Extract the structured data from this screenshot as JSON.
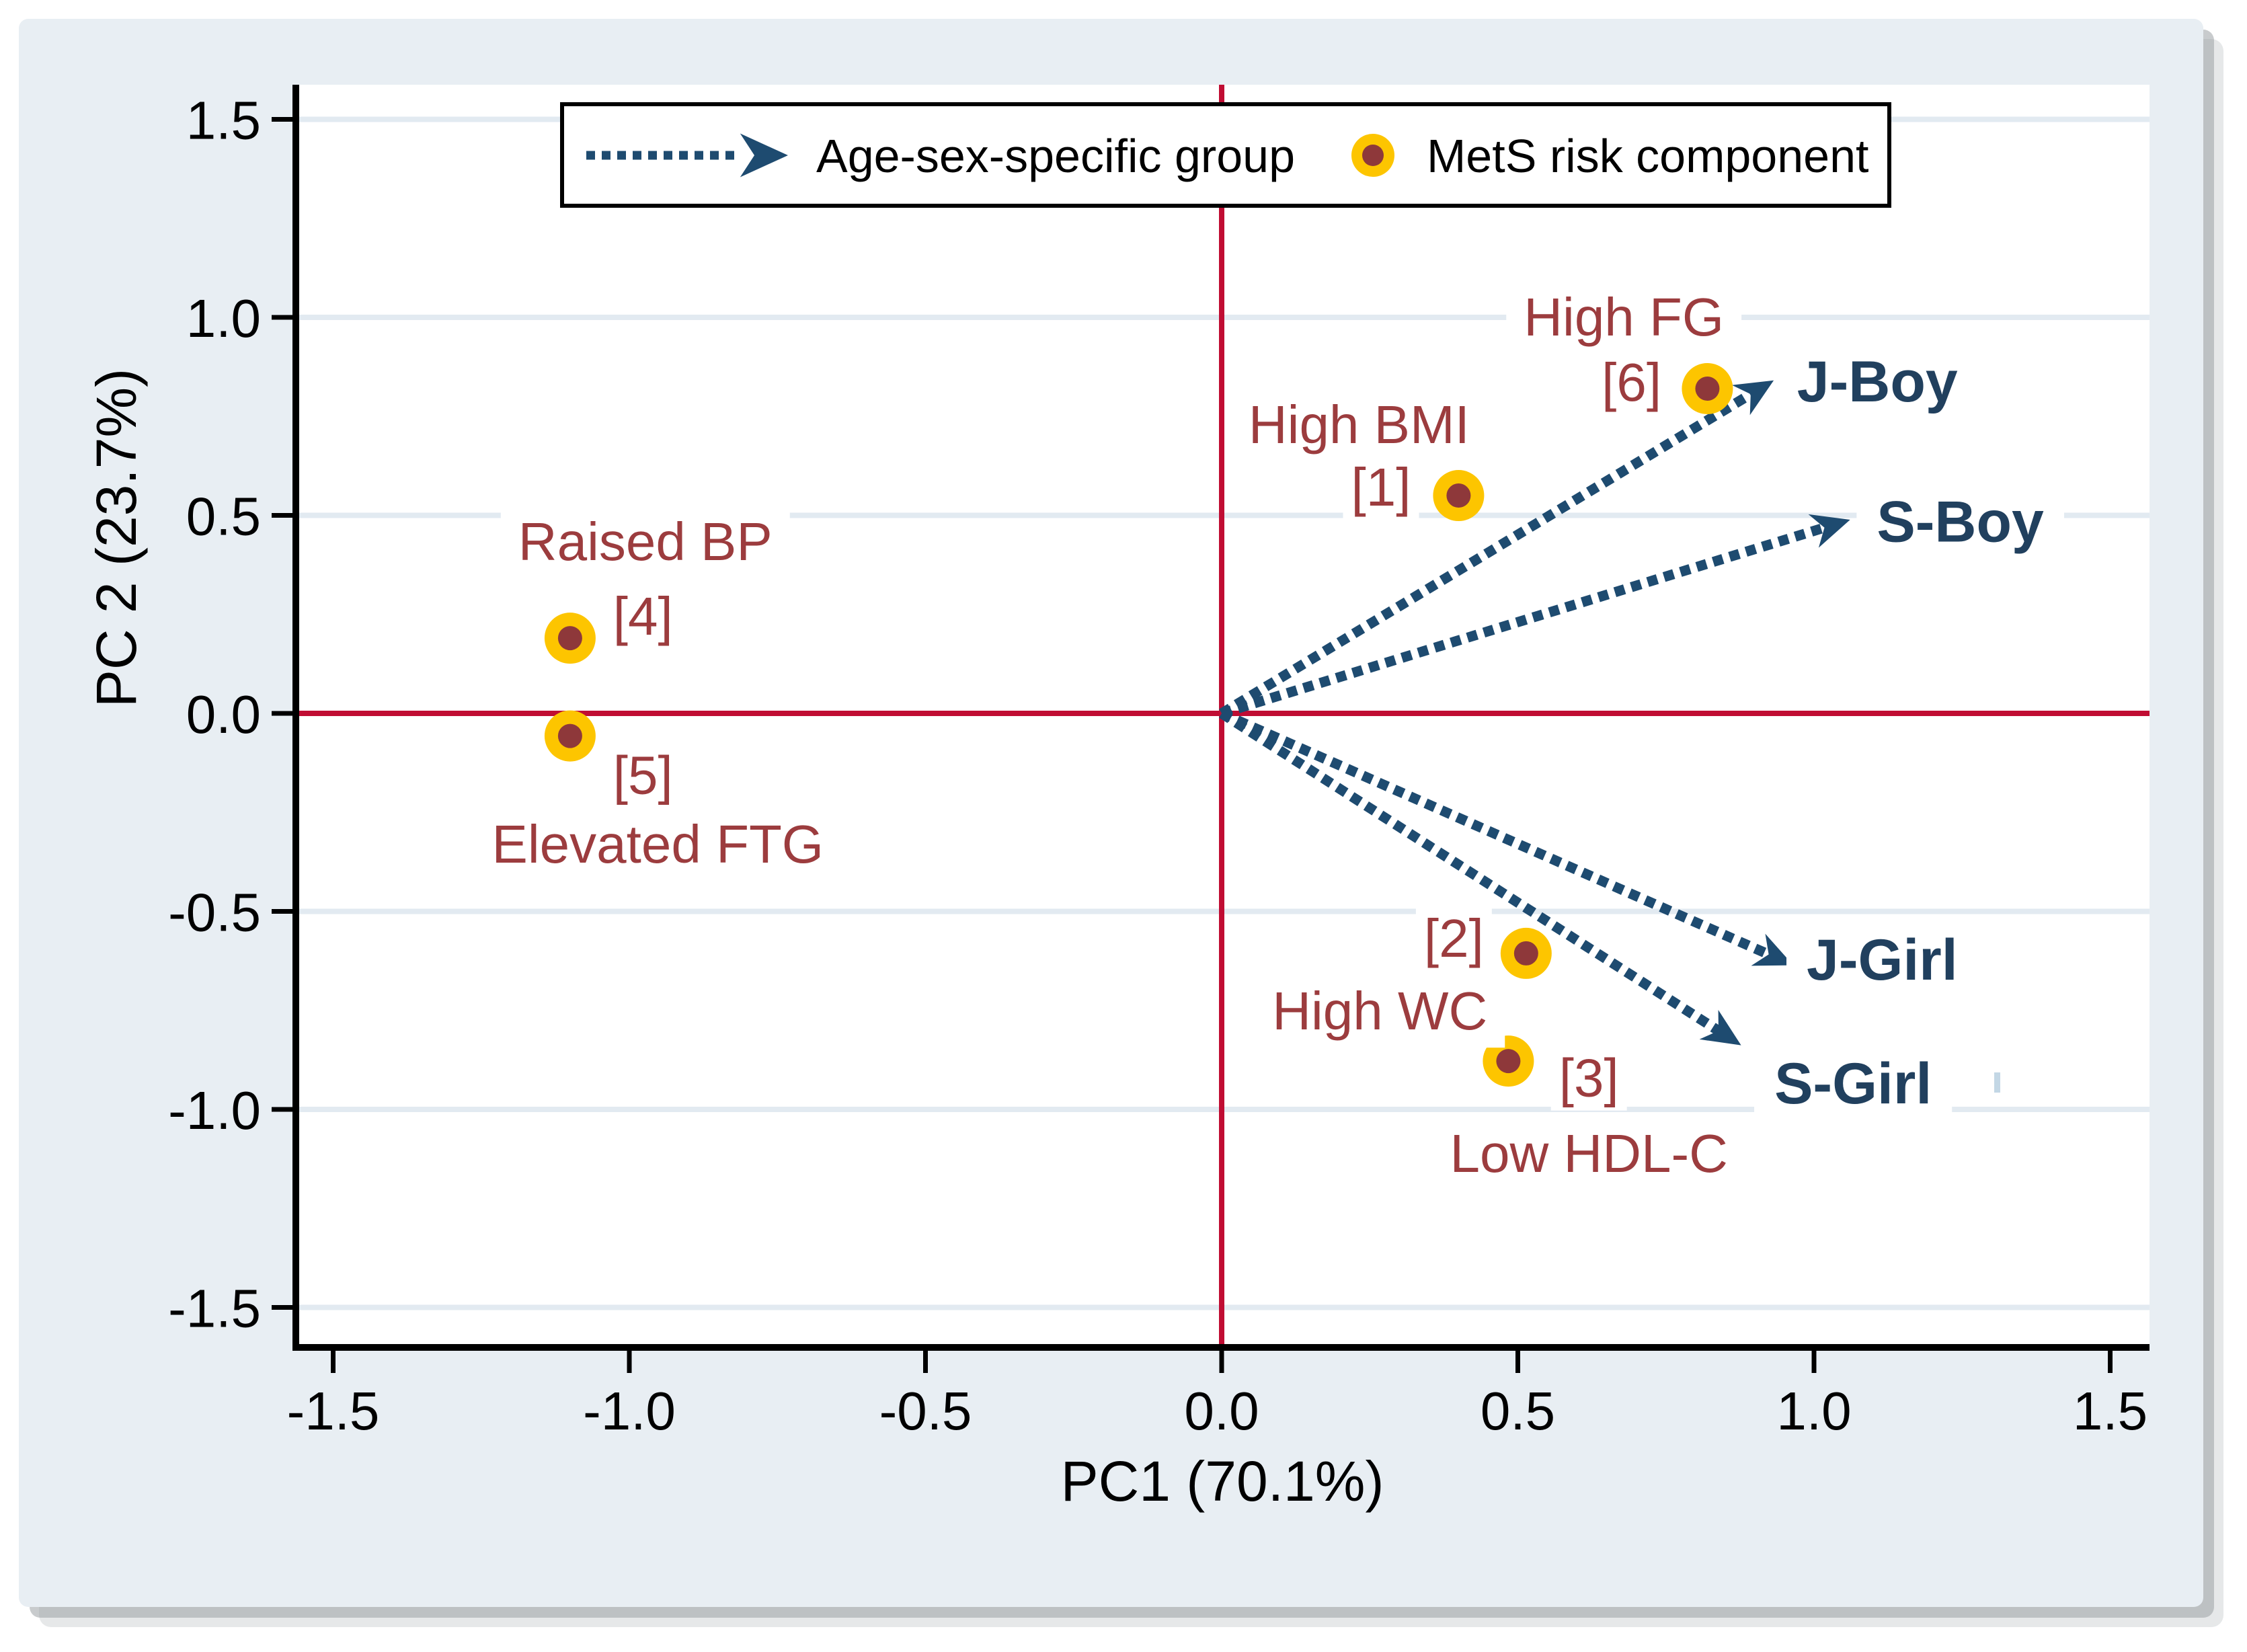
{
  "figure": {
    "page_bg": "#ffffff",
    "card_bg": "#e8eef3",
    "plot_bg": "#ffffff",
    "grid_color": "#e2eaf1",
    "axis_color": "#000000",
    "crosshair_color": "#c00d33",
    "arrow_color": "#1e4b70",
    "group_label_color": "#21405e",
    "component_label_color": "#9c3c3e",
    "marker_outer_color": "#fdc500",
    "marker_inner_color": "#8e383a",
    "shadow_color": "#9aa0a4"
  },
  "chart_data": {
    "type": "scatter",
    "title": "",
    "xlabel": "PC1 (70.1%)",
    "ylabel": "PC 2 (23.7%)",
    "xlim": [
      -1.563,
      1.566
    ],
    "ylim": [
      -1.601,
      1.588
    ],
    "xticks": [
      -1.5,
      -1.0,
      -0.5,
      0.0,
      0.5,
      1.0,
      1.5
    ],
    "yticks": [
      -1.5,
      -1.0,
      -0.5,
      0.0,
      0.5,
      1.0,
      1.5
    ],
    "grid": "horizontal-only",
    "crosshair_at": {
      "x": 0.0,
      "y": 0.0
    },
    "legend": {
      "position": "top",
      "arrow_label": "Age-sex-specific group",
      "marker_label": "MetS risk component"
    },
    "groups": {
      "series_name": "Age-sex-specific group",
      "items": [
        {
          "label": "J-Boy",
          "tip": [
            0.932,
            0.841
          ],
          "label_at": [
            1.107,
            0.84
          ]
        },
        {
          "label": "S-Boy",
          "tip": [
            1.061,
            0.489
          ],
          "label_at": [
            1.247,
            0.486
          ]
        },
        {
          "label": "J-Girl",
          "tip": [
            0.965,
            -0.636
          ],
          "label_at": [
            1.115,
            -0.62
          ]
        },
        {
          "label": "S-Girl",
          "tip": [
            0.877,
            -0.838
          ],
          "label_at": [
            1.066,
            -0.932
          ]
        }
      ]
    },
    "components": {
      "series_name": "MetS risk component",
      "items": [
        {
          "id": "[1]",
          "label": "High BMI",
          "point": [
            0.4,
            0.55
          ],
          "id_at": [
            0.269,
            0.574
          ],
          "label_at": [
            0.232,
            0.732
          ]
        },
        {
          "id": "[2]",
          "label": "High WC",
          "point": [
            0.514,
            -0.606
          ],
          "id_at": [
            0.392,
            -0.565
          ],
          "label_at": [
            0.267,
            -0.749
          ]
        },
        {
          "id": "[3]",
          "label": "Low HDL-C",
          "point": [
            0.484,
            -0.878
          ],
          "id_at": [
            0.62,
            -0.918
          ],
          "label_at": [
            0.62,
            -1.109
          ]
        },
        {
          "id": "[4]",
          "label": "Raised BP",
          "point": [
            -1.1,
            0.19
          ],
          "id_at": [
            -0.977,
            0.248
          ],
          "label_at": [
            -0.973,
            0.436
          ]
        },
        {
          "id": "[5]",
          "label": "Elevated FTG",
          "point": [
            -1.1,
            -0.057
          ],
          "id_at": [
            -0.977,
            -0.154
          ],
          "label_at": [
            -0.952,
            -0.328
          ]
        },
        {
          "id": "[6]",
          "label": "High FG",
          "point": [
            0.82,
            0.82
          ],
          "id_at": [
            0.692,
            0.839
          ],
          "label_at": [
            0.679,
            1.003
          ]
        }
      ]
    }
  }
}
